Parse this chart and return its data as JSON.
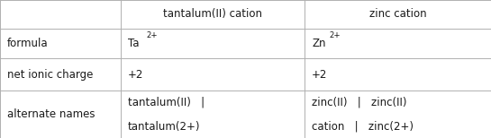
{
  "col_headers": [
    "tantalum(II) cation",
    "zinc cation"
  ],
  "row_headers": [
    "formula",
    "net ionic charge",
    "alternate names"
  ],
  "formula_ta_base": "Ta",
  "formula_ta_sup": "2+",
  "formula_zn_base": "Zn",
  "formula_zn_sup": "2+",
  "net_ionic_charge_ta": "+2",
  "net_ionic_charge_zn": "+2",
  "alt_names_ta_line1": "tantalum(II)   |",
  "alt_names_ta_line2": "tantalum(2+)",
  "alt_names_zn_line1": "zinc(II)   |   zinc(II)",
  "alt_names_zn_line2": "cation   |   zinc(2+)",
  "bg_color": "#ffffff",
  "grid_color": "#b0b0b0",
  "text_color": "#1a1a1a",
  "font_size": 8.5,
  "fig_width": 5.45,
  "fig_height": 1.54,
  "dpi": 100,
  "col_bounds": [
    0.0,
    0.245,
    0.62,
    1.0
  ],
  "row_bounds": [
    1.0,
    0.795,
    0.575,
    0.345,
    0.0
  ]
}
